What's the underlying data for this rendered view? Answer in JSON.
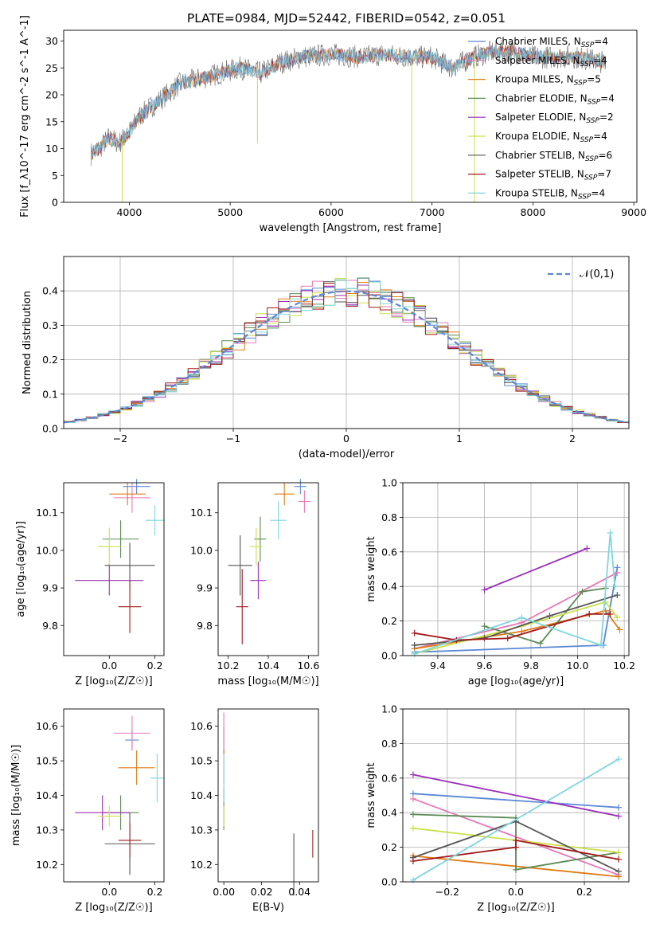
{
  "figure_title": "PLATE=0984, MJD=52442, FIBERID=0542, z=0.051",
  "colors": {
    "chab_miles": "#5b87d6",
    "salp_miles": "#e679b6",
    "kroupa_miles": "#e07b16",
    "chab_elodie": "#5a8a55",
    "salp_elodie": "#9a2fb8",
    "kroupa_elodie": "#cbe04a",
    "chab_stelib": "#555555",
    "salp_stelib": "#a11a1a",
    "kroupa_stelib": "#7fd6dc",
    "normal_line": "#5b87d6",
    "grid": "#b0b0b0"
  },
  "chart_data": [
    {
      "id": "spectrum",
      "type": "line",
      "xlabel": "wavelength [Angstrom, rest frame]",
      "ylabel": "Flux [f_λ10^-17 erg cm^-2 s^-1 A^-1]",
      "xlim": [
        3350,
        9030
      ],
      "ylim": [
        0,
        32
      ],
      "xticks": [
        4000,
        5000,
        6000,
        7000,
        8000,
        9000
      ],
      "yticks": [
        0,
        5,
        10,
        15,
        20,
        25,
        30
      ],
      "legend_position": "right",
      "legend": [
        {
          "label": "Chabrier MILES, N",
          "sub": "SSP",
          "tail": "=4",
          "color_key": "chab_miles"
        },
        {
          "label": "Salpeter MILES, N",
          "sub": "SSP",
          "tail": "=4",
          "color_key": "salp_miles"
        },
        {
          "label": "Kroupa MILES, N",
          "sub": "SSP",
          "tail": "=5",
          "color_key": "kroupa_miles"
        },
        {
          "label": "Chabrier ELODIE, N",
          "sub": "SSP",
          "tail": "=4",
          "color_key": "chab_elodie"
        },
        {
          "label": "Salpeter ELODIE, N",
          "sub": "SSP",
          "tail": "=2",
          "color_key": "salp_elodie"
        },
        {
          "label": "Kroupa ELODIE, N",
          "sub": "SSP",
          "tail": "=4",
          "color_key": "kroupa_elodie"
        },
        {
          "label": "Chabrier STELIB, N",
          "sub": "SSP",
          "tail": "=6",
          "color_key": "chab_stelib"
        },
        {
          "label": "Salpeter STELIB, N",
          "sub": "SSP",
          "tail": "=7",
          "color_key": "salp_stelib"
        },
        {
          "label": "Kroupa STELIB, N",
          "sub": "SSP",
          "tail": "=4",
          "color_key": "kroupa_stelib"
        }
      ],
      "continuum": [
        [
          3620,
          9
        ],
        [
          3700,
          10
        ],
        [
          3800,
          12
        ],
        [
          3900,
          11
        ],
        [
          4000,
          13
        ],
        [
          4100,
          16
        ],
        [
          4300,
          19
        ],
        [
          4500,
          22
        ],
        [
          4700,
          23
        ],
        [
          4900,
          24
        ],
        [
          5100,
          25
        ],
        [
          5300,
          24
        ],
        [
          5500,
          26
        ],
        [
          5700,
          27
        ],
        [
          6000,
          27.5
        ],
        [
          6300,
          27
        ],
        [
          6500,
          27.5
        ],
        [
          6800,
          27
        ],
        [
          7000,
          27
        ],
        [
          7200,
          25
        ],
        [
          7400,
          27
        ],
        [
          7600,
          28
        ],
        [
          7800,
          28
        ],
        [
          8000,
          27
        ],
        [
          8200,
          27
        ],
        [
          8400,
          27
        ],
        [
          8600,
          26.5
        ],
        [
          8720,
          26
        ]
      ],
      "features": [
        {
          "x": 3930,
          "y": 0
        },
        {
          "x": 5270,
          "y": 11
        },
        {
          "x": 6800,
          "y": 0
        },
        {
          "x": 7420,
          "y": 0
        }
      ]
    },
    {
      "id": "residuals",
      "type": "line",
      "xlabel": "(data-model)/error",
      "ylabel": "Normed distribution",
      "xlim": [
        -2.5,
        2.5
      ],
      "ylim": [
        0,
        0.5
      ],
      "xticks": [
        -2,
        -1,
        0,
        1,
        2
      ],
      "yticks": [
        0.0,
        0.1,
        0.2,
        0.3,
        0.4
      ],
      "legend_position": "top-right",
      "legend_label": "𝒩(0,1)",
      "normal_curve": {
        "mean": 0,
        "sigma": 1
      }
    },
    {
      "id": "age_vs_Z",
      "type": "scatter",
      "xlabel": "Z [log₁₀(Z/Z☉)]",
      "ylabel": "age  [log₁₀(age/yr)]",
      "xlim": [
        -0.2,
        0.24
      ],
      "ylim": [
        9.72,
        10.18
      ],
      "xticks": [
        0.0,
        0.2
      ],
      "yticks": [
        9.8,
        9.9,
        10.0,
        10.1
      ],
      "points": [
        {
          "key": "chab_miles",
          "x": 0.12,
          "y": 10.17,
          "xerr": 0.06,
          "yerr": 0.02
        },
        {
          "key": "salp_miles",
          "x": 0.1,
          "y": 10.14,
          "xerr": 0.08,
          "yerr": 0.04
        },
        {
          "key": "kroupa_miles",
          "x": 0.08,
          "y": 10.15,
          "xerr": 0.08,
          "yerr": 0.03
        },
        {
          "key": "chab_elodie",
          "x": 0.05,
          "y": 10.03,
          "xerr": 0.08,
          "yerr": 0.05
        },
        {
          "key": "salp_elodie",
          "x": 0.0,
          "y": 9.92,
          "xerr": 0.15,
          "yerr": 0.04
        },
        {
          "key": "kroupa_elodie",
          "x": 0.0,
          "y": 10.01,
          "xerr": 0.05,
          "yerr": 0.05
        },
        {
          "key": "chab_stelib",
          "x": 0.09,
          "y": 9.96,
          "xerr": 0.11,
          "yerr": 0.06
        },
        {
          "key": "salp_stelib",
          "x": 0.09,
          "y": 9.85,
          "xerr": 0.05,
          "yerr": 0.07
        },
        {
          "key": "kroupa_stelib",
          "x": 0.2,
          "y": 10.08,
          "xerr": 0.04,
          "yerr": 0.04
        }
      ]
    },
    {
      "id": "age_vs_mass",
      "type": "scatter",
      "xlabel": "mass [log₁₀(M/M☉)]",
      "ylabel": "",
      "xlim": [
        10.15,
        10.65
      ],
      "ylim": [
        9.72,
        10.18
      ],
      "xticks": [
        10.2,
        10.4,
        10.6
      ],
      "yticks": [
        9.8,
        9.9,
        10.0,
        10.1
      ],
      "points": [
        {
          "key": "chab_miles",
          "x": 10.56,
          "y": 10.17,
          "xerr": 0.03,
          "yerr": 0.02
        },
        {
          "key": "salp_miles",
          "x": 10.58,
          "y": 10.13,
          "xerr": 0.03,
          "yerr": 0.03
        },
        {
          "key": "kroupa_miles",
          "x": 10.48,
          "y": 10.15,
          "xerr": 0.05,
          "yerr": 0.03
        },
        {
          "key": "chab_elodie",
          "x": 10.36,
          "y": 10.03,
          "xerr": 0.03,
          "yerr": 0.06
        },
        {
          "key": "salp_elodie",
          "x": 10.35,
          "y": 9.92,
          "xerr": 0.04,
          "yerr": 0.05
        },
        {
          "key": "kroupa_elodie",
          "x": 10.34,
          "y": 10.01,
          "xerr": 0.03,
          "yerr": 0.05
        },
        {
          "key": "chab_stelib",
          "x": 10.26,
          "y": 9.96,
          "xerr": 0.06,
          "yerr": 0.08
        },
        {
          "key": "salp_stelib",
          "x": 10.27,
          "y": 9.85,
          "xerr": 0.03,
          "yerr": 0.1
        },
        {
          "key": "kroupa_stelib",
          "x": 10.45,
          "y": 10.08,
          "xerr": 0.04,
          "yerr": 0.05
        }
      ]
    },
    {
      "id": "weight_vs_age",
      "type": "line",
      "xlabel": "age  [log₁₀(age/yr)]",
      "ylabel": "mass weight",
      "xlim": [
        9.25,
        10.22
      ],
      "ylim": [
        0,
        1.0
      ],
      "xticks": [
        9.4,
        9.6,
        9.8,
        10.0,
        10.2
      ],
      "yticks": [
        0.0,
        0.2,
        0.4,
        0.6,
        0.8,
        1.0
      ],
      "series": [
        {
          "key": "chab_miles",
          "x": [
            9.3,
            10.11,
            10.17
          ],
          "y": [
            0.02,
            0.06,
            0.51
          ]
        },
        {
          "key": "salp_miles",
          "x": [
            9.3,
            9.76,
            10.17
          ],
          "y": [
            0.04,
            0.19,
            0.48
          ]
        },
        {
          "key": "kroupa_miles",
          "x": [
            9.3,
            9.76,
            10.12,
            10.18
          ],
          "y": [
            0.04,
            0.14,
            0.26,
            0.15
          ]
        },
        {
          "key": "chab_elodie",
          "x": [
            9.6,
            9.84,
            10.02,
            10.12
          ],
          "y": [
            0.17,
            0.07,
            0.37,
            0.39
          ]
        },
        {
          "key": "salp_elodie",
          "x": [
            9.6,
            10.04
          ],
          "y": [
            0.38,
            0.62
          ]
        },
        {
          "key": "kroupa_elodie",
          "x": [
            9.3,
            9.76,
            10.12,
            10.17
          ],
          "y": [
            0.01,
            0.17,
            0.31,
            0.22
          ]
        },
        {
          "key": "chab_stelib",
          "x": [
            9.3,
            9.6,
            9.88,
            10.17
          ],
          "y": [
            0.06,
            0.1,
            0.23,
            0.35
          ]
        },
        {
          "key": "salp_stelib",
          "x": [
            9.3,
            9.48,
            9.7,
            10.05,
            10.14
          ],
          "y": [
            0.13,
            0.09,
            0.1,
            0.24,
            0.24
          ]
        },
        {
          "key": "kroupa_stelib",
          "x": [
            9.3,
            9.76,
            10.1,
            10.14,
            10.16
          ],
          "y": [
            0.01,
            0.22,
            0.06,
            0.71,
            0.4
          ]
        }
      ]
    },
    {
      "id": "mass_vs_Z",
      "type": "scatter",
      "xlabel": "Z [log₁₀(Z/Z☉)]",
      "ylabel": "mass [log₁₀(M/M☉)]",
      "xlim": [
        -0.2,
        0.24
      ],
      "ylim": [
        10.15,
        10.65
      ],
      "xticks": [
        0.0,
        0.2
      ],
      "yticks": [
        10.2,
        10.3,
        10.4,
        10.5,
        10.6
      ],
      "points": [
        {
          "key": "chab_miles",
          "x": 0.1,
          "y": 10.56,
          "xerr": 0.03,
          "yerr": 0.03
        },
        {
          "key": "salp_miles",
          "x": 0.1,
          "y": 10.58,
          "xerr": 0.08,
          "yerr": 0.05
        },
        {
          "key": "kroupa_miles",
          "x": 0.12,
          "y": 10.48,
          "xerr": 0.08,
          "yerr": 0.05
        },
        {
          "key": "chab_elodie",
          "x": 0.05,
          "y": 10.35,
          "xerr": 0.08,
          "yerr": 0.05
        },
        {
          "key": "salp_elodie",
          "x": -0.03,
          "y": 10.35,
          "xerr": 0.12,
          "yerr": 0.05
        },
        {
          "key": "kroupa_elodie",
          "x": 0.0,
          "y": 10.34,
          "xerr": 0.05,
          "yerr": 0.03
        },
        {
          "key": "chab_stelib",
          "x": 0.09,
          "y": 10.26,
          "xerr": 0.11,
          "yerr": 0.09
        },
        {
          "key": "salp_stelib",
          "x": 0.09,
          "y": 10.27,
          "xerr": 0.05,
          "yerr": 0.05
        },
        {
          "key": "kroupa_stelib",
          "x": 0.21,
          "y": 10.45,
          "xerr": 0.03,
          "yerr": 0.07
        }
      ]
    },
    {
      "id": "mass_vs_ebv",
      "type": "scatter",
      "xlabel": "E(B-V)",
      "ylabel": "",
      "xlim": [
        -0.003,
        0.05
      ],
      "ylim": [
        10.15,
        10.65
      ],
      "xticks": [
        0.0,
        0.02,
        0.04
      ],
      "yticks": [
        10.2,
        10.3,
        10.4,
        10.5,
        10.6
      ],
      "points": [
        {
          "key": "chab_miles",
          "x": 0.0,
          "y": 10.56,
          "xerr": 0,
          "yerr": 0.04
        },
        {
          "key": "salp_miles",
          "x": 0.0,
          "y": 10.58,
          "xerr": 0,
          "yerr": 0.06
        },
        {
          "key": "kroupa_miles",
          "x": 0.0,
          "y": 10.48,
          "xerr": 0,
          "yerr": 0.05
        },
        {
          "key": "chab_elodie",
          "x": 0.0,
          "y": 10.36,
          "xerr": 0,
          "yerr": 0.06
        },
        {
          "key": "kroupa_elodie",
          "x": 0.0,
          "y": 10.34,
          "xerr": 0,
          "yerr": 0.03
        },
        {
          "key": "kroupa_stelib",
          "x": 0.0,
          "y": 10.45,
          "xerr": 0,
          "yerr": 0.07
        },
        {
          "key": "chab_stelib",
          "x": 0.037,
          "y": 10.2,
          "xerr": 0,
          "yerr": 0.09
        },
        {
          "key": "salp_stelib",
          "x": 0.047,
          "y": 10.26,
          "xerr": 0,
          "yerr": 0.04
        }
      ]
    },
    {
      "id": "weight_vs_Z",
      "type": "line",
      "xlabel": "Z [log₁₀(Z/Z☉)]",
      "ylabel": "mass weight",
      "xlim": [
        -0.33,
        0.33
      ],
      "ylim": [
        0,
        1.0
      ],
      "xticks": [
        -0.2,
        0.0,
        0.2
      ],
      "yticks": [
        0.0,
        0.2,
        0.4,
        0.6,
        0.8,
        1.0
      ],
      "series": [
        {
          "key": "chab_miles",
          "x": [
            -0.3,
            0.3
          ],
          "y": [
            0.51,
            0.43
          ]
        },
        {
          "key": "salp_miles",
          "x": [
            -0.3,
            0.3
          ],
          "y": [
            0.48,
            0.04
          ]
        },
        {
          "key": "kroupa_miles",
          "x": [
            -0.3,
            0.3
          ],
          "y": [
            0.15,
            0.03
          ]
        },
        {
          "key": "chab_elodie",
          "x": [
            -0.3,
            0.0,
            0.0,
            0.3
          ],
          "y": [
            0.39,
            0.37,
            0.07,
            0.17
          ]
        },
        {
          "key": "salp_elodie",
          "x": [
            -0.3,
            0.3
          ],
          "y": [
            0.62,
            0.38
          ]
        },
        {
          "key": "kroupa_elodie",
          "x": [
            -0.3,
            0.3
          ],
          "y": [
            0.31,
            0.17
          ]
        },
        {
          "key": "chab_stelib",
          "x": [
            -0.3,
            0.0,
            0.3
          ],
          "y": [
            0.14,
            0.35,
            0.06
          ]
        },
        {
          "key": "salp_stelib",
          "x": [
            -0.3,
            0.0,
            0.0,
            0.3
          ],
          "y": [
            0.12,
            0.2,
            0.24,
            0.13
          ]
        },
        {
          "key": "kroupa_stelib",
          "x": [
            -0.3,
            0.3
          ],
          "y": [
            0.01,
            0.71
          ]
        }
      ]
    }
  ]
}
